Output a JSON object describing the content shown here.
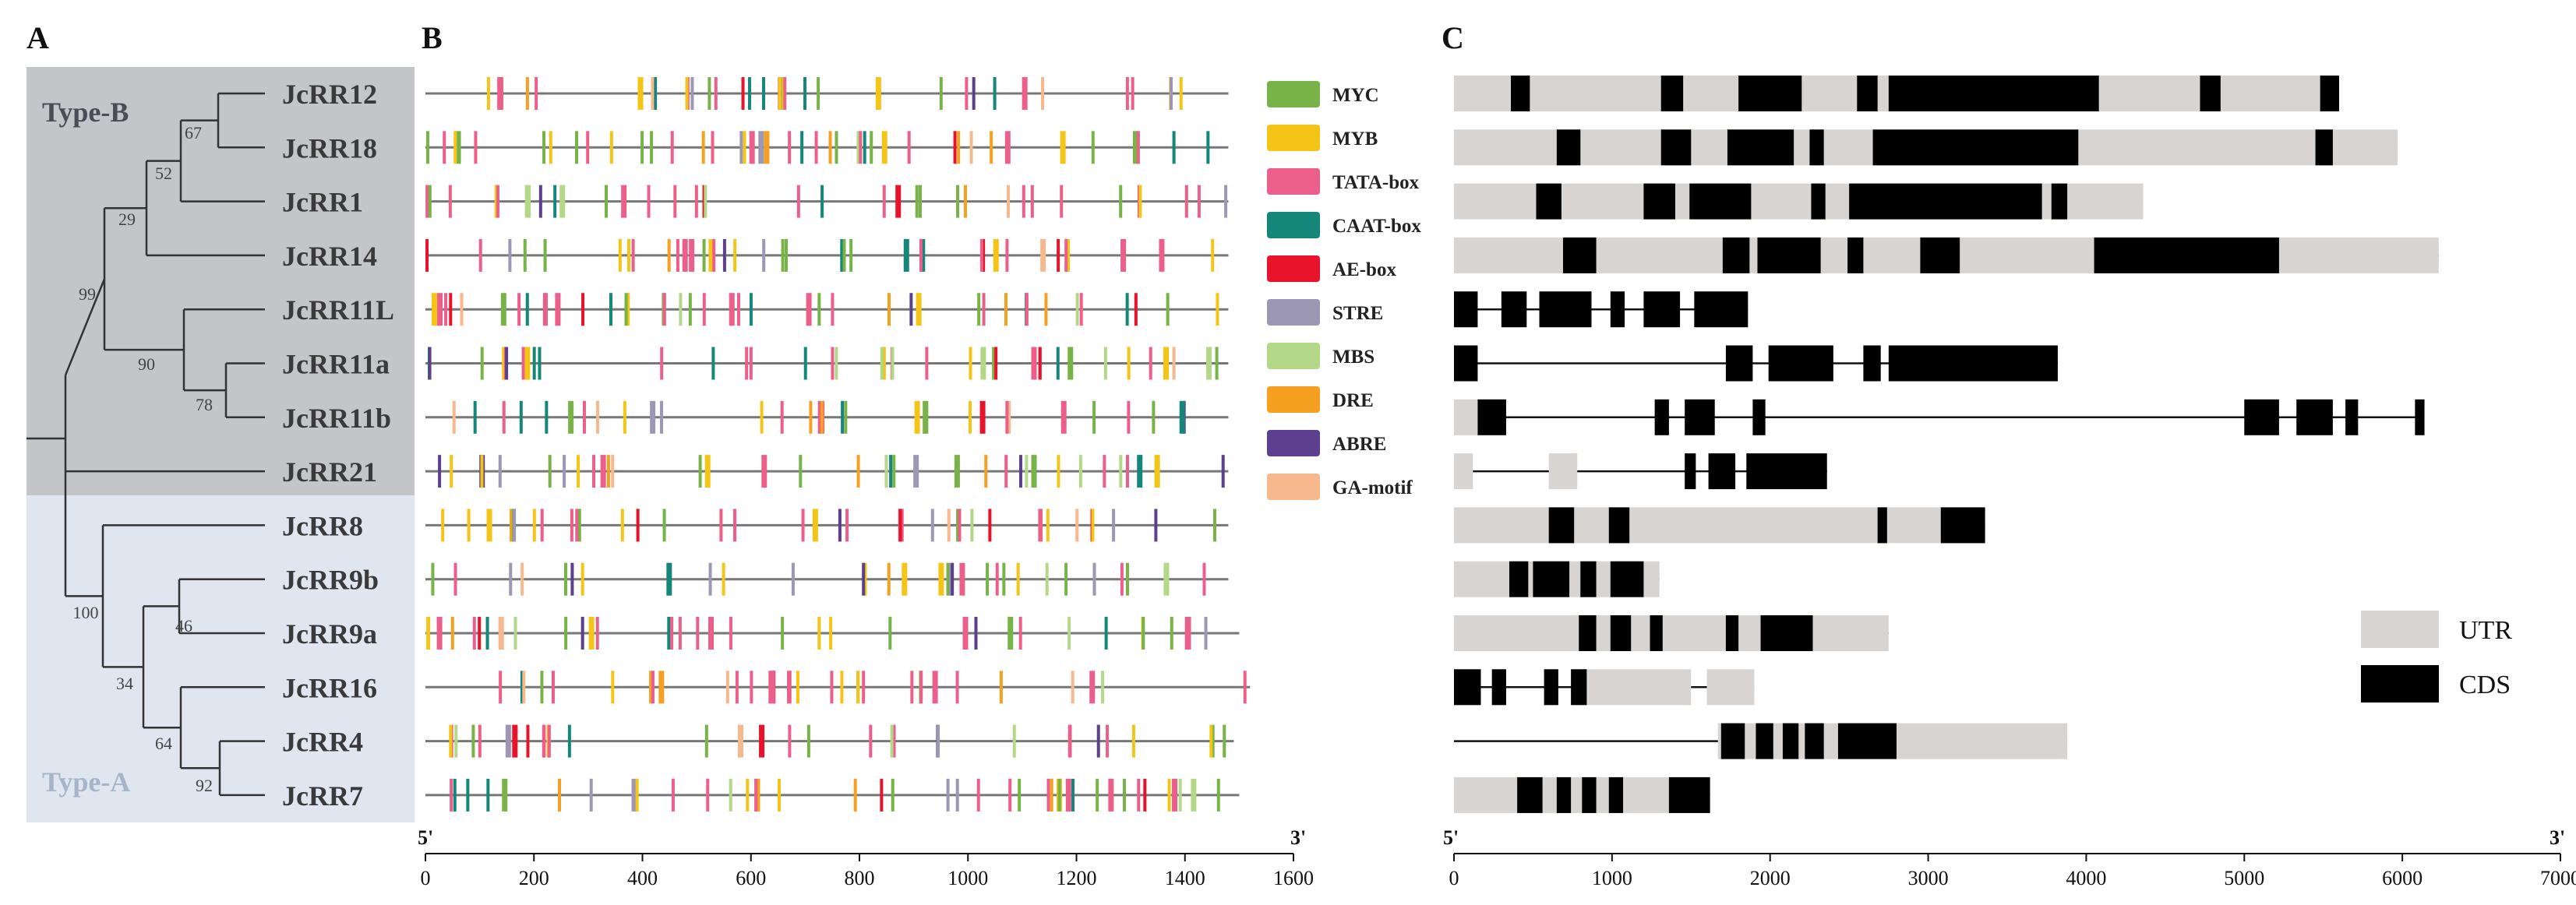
{
  "panels": {
    "a": "A",
    "b": "B",
    "c": "C"
  },
  "tree": {
    "type_b": "Type-B",
    "type_a": "Type-A",
    "type_b_color": "#c4c5c9",
    "type_a_color": "#dfe6ef",
    "type_a_text_color": "#a6b5c9",
    "type_b_text_color": "#4a4d57",
    "bootstrap": [
      "67",
      "52",
      "29",
      "99",
      "90",
      "78",
      "100",
      "46",
      "34",
      "64",
      "92"
    ]
  },
  "genes": [
    "JcRR12",
    "JcRR18",
    "JcRR1",
    "JcRR14",
    "JcRR11L",
    "JcRR11a",
    "JcRR11b",
    "JcRR21",
    "JcRR8",
    "JcRR9b",
    "JcRR9a",
    "JcRR16",
    "JcRR4",
    "JcRR7"
  ],
  "promoter": {
    "start_label": "5'",
    "end_label": "3'",
    "ticks": [
      "0",
      "200",
      "400",
      "600",
      "800",
      "1000",
      "1200",
      "1400",
      "1600"
    ],
    "axis_max": 1600,
    "line_lengths": [
      1480,
      1480,
      1480,
      1480,
      1480,
      1480,
      1480,
      1480,
      1480,
      1480,
      1500,
      1520,
      1490,
      1500
    ],
    "elements": [
      {
        "name": "MYC",
        "color": "#77b347"
      },
      {
        "name": "MYB",
        "color": "#f4c517"
      },
      {
        "name": "TATA-box",
        "color": "#ec5f8a"
      },
      {
        "name": "CAAT-box",
        "color": "#15877a"
      },
      {
        "name": "AE-box",
        "color": "#e8132b"
      },
      {
        "name": "STRE",
        "color": "#9b97b4"
      },
      {
        "name": "MBS",
        "color": "#b2d888"
      },
      {
        "name": "DRE",
        "color": "#f6a021"
      },
      {
        "name": "ABRE",
        "color": "#5c3f8e"
      },
      {
        "name": "GA-motif",
        "color": "#f6b88c"
      }
    ]
  },
  "structure": {
    "start_label": "5'",
    "end_label": "3'",
    "ticks": [
      "0",
      "1000",
      "2000",
      "3000",
      "4000",
      "5000",
      "6000",
      "7000"
    ],
    "axis_max": 7000,
    "legend": [
      {
        "name": "UTR",
        "color": "#d8d4d1"
      },
      {
        "name": "CDS",
        "color": "#000000"
      }
    ],
    "genes": [
      {
        "utr": [
          [
            0,
            5550
          ]
        ],
        "cds": [
          [
            360,
            480
          ],
          [
            1310,
            1450
          ],
          [
            1800,
            2200
          ],
          [
            2550,
            2680
          ],
          [
            2750,
            4080
          ],
          [
            4720,
            4850
          ],
          [
            5480,
            5600
          ]
        ],
        "line": [
          0,
          5600
        ]
      },
      {
        "utr": [
          [
            0,
            5970
          ]
        ],
        "cds": [
          [
            650,
            800
          ],
          [
            1310,
            1500
          ],
          [
            1730,
            2150
          ],
          [
            2250,
            2340
          ],
          [
            2650,
            3950
          ],
          [
            5450,
            5560
          ]
        ],
        "line": [
          0,
          5970
        ]
      },
      {
        "utr": [
          [
            0,
            4360
          ]
        ],
        "cds": [
          [
            520,
            680
          ],
          [
            1200,
            1400
          ],
          [
            1490,
            1880
          ],
          [
            2260,
            2350
          ],
          [
            2500,
            3720
          ],
          [
            3780,
            3880
          ]
        ],
        "line": [
          0,
          4360
        ]
      },
      {
        "utr": [
          [
            0,
            6230
          ]
        ],
        "cds": [
          [
            690,
            900
          ],
          [
            1700,
            1870
          ],
          [
            1920,
            2320
          ],
          [
            2490,
            2590
          ],
          [
            2950,
            3200
          ],
          [
            4050,
            5220
          ]
        ],
        "line": [
          0,
          6230
        ]
      },
      {
        "utr": [],
        "cds": [
          [
            0,
            150
          ],
          [
            300,
            460
          ],
          [
            540,
            870
          ],
          [
            990,
            1080
          ],
          [
            1200,
            1430
          ],
          [
            1520,
            1860
          ]
        ],
        "line": [
          0,
          1860
        ]
      },
      {
        "utr": [],
        "cds": [
          [
            0,
            150
          ],
          [
            1720,
            1890
          ],
          [
            1990,
            2400
          ],
          [
            2590,
            2700
          ],
          [
            2750,
            3820
          ]
        ],
        "line": [
          0,
          3820
        ]
      },
      {
        "utr": [
          [
            0,
            150
          ]
        ],
        "cds": [
          [
            150,
            330
          ],
          [
            1270,
            1360
          ],
          [
            1460,
            1650
          ],
          [
            1890,
            1970
          ],
          [
            5000,
            5220
          ],
          [
            5330,
            5560
          ],
          [
            5640,
            5720
          ],
          [
            6080,
            6140
          ]
        ],
        "line": [
          0,
          6140
        ]
      },
      {
        "utr": [
          [
            0,
            120
          ],
          [
            600,
            780
          ]
        ],
        "cds": [
          [
            1460,
            1530
          ],
          [
            1610,
            1780
          ],
          [
            1850,
            2360
          ]
        ],
        "line": [
          0,
          2360
        ]
      },
      {
        "utr": [
          [
            0,
            3360
          ]
        ],
        "cds": [
          [
            600,
            760
          ],
          [
            980,
            1110
          ],
          [
            2680,
            2740
          ],
          [
            3080,
            3360
          ]
        ],
        "line": [
          0,
          3360
        ]
      },
      {
        "utr": [
          [
            0,
            1300
          ]
        ],
        "cds": [
          [
            350,
            470
          ],
          [
            500,
            730
          ],
          [
            800,
            900
          ],
          [
            990,
            1200
          ]
        ],
        "line": [
          0,
          1300
        ]
      },
      {
        "utr": [
          [
            0,
            2750
          ]
        ],
        "cds": [
          [
            790,
            900
          ],
          [
            990,
            1120
          ],
          [
            1240,
            1320
          ],
          [
            1720,
            1800
          ],
          [
            1940,
            2270
          ]
        ],
        "line": [
          0,
          2750
        ]
      },
      {
        "utr": [
          [
            830,
            1500
          ],
          [
            1600,
            1900
          ]
        ],
        "cds": [
          [
            0,
            170
          ],
          [
            240,
            330
          ],
          [
            570,
            660
          ],
          [
            740,
            840
          ]
        ],
        "line": [
          0,
          1900
        ]
      },
      {
        "utr": [
          [
            1670,
            3880
          ]
        ],
        "cds": [
          [
            1690,
            1840
          ],
          [
            1910,
            2020
          ],
          [
            2080,
            2180
          ],
          [
            2220,
            2340
          ],
          [
            2430,
            2800
          ]
        ],
        "line": [
          0,
          3880
        ]
      },
      {
        "utr": [
          [
            0,
            1620
          ]
        ],
        "cds": [
          [
            400,
            560
          ],
          [
            650,
            740
          ],
          [
            810,
            900
          ],
          [
            980,
            1070
          ],
          [
            1360,
            1620
          ]
        ],
        "line": [
          0,
          1620
        ]
      }
    ]
  }
}
